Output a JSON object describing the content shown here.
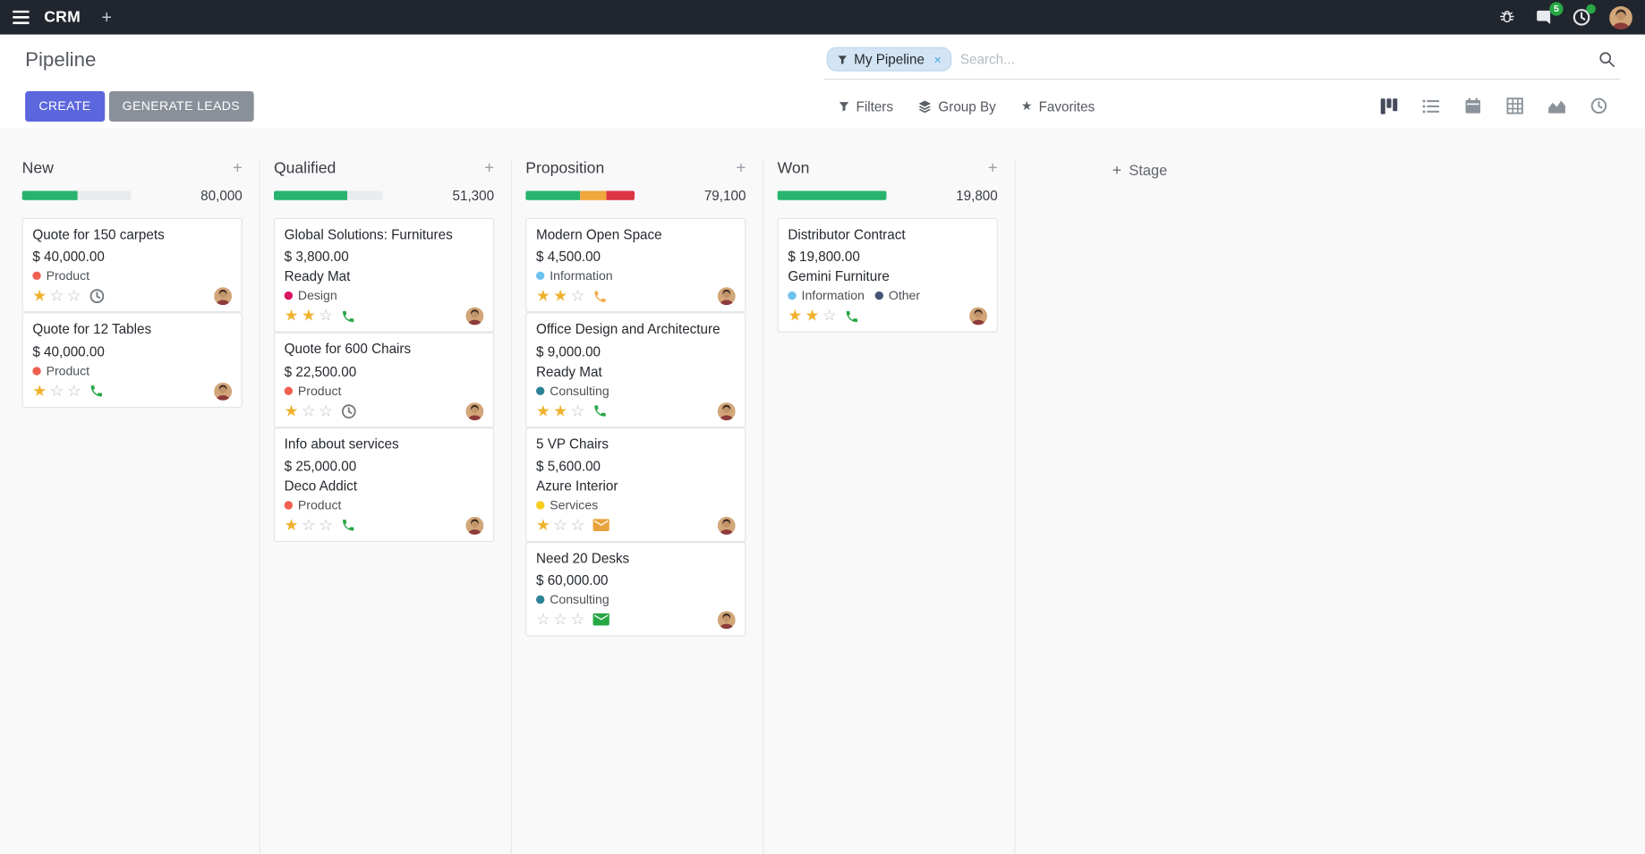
{
  "colors": {
    "topbar-bg": "#21262e",
    "primary": "#5c66dd",
    "secondary-btn": "#8a9099",
    "badge-green": "#28a745",
    "board-bg": "#f9f9fa",
    "facet-bg": "#d3e5f5",
    "facet-border": "#bcd6ec",
    "gold": "#f0b12c",
    "star-muted": "#b9bfc5"
  },
  "topbar": {
    "app_name": "CRM",
    "icons": [
      "apps-menu-icon",
      "plus-icon",
      "bug-icon",
      "messages-icon",
      "activities-icon",
      "user-avatar"
    ],
    "messages_badge": "5"
  },
  "control_panel": {
    "title": "Pipeline",
    "create_label": "CREATE",
    "generate_leads_label": "GENERATE LEADS",
    "filters_label": "Filters",
    "group_by_label": "Group By",
    "favorites_label": "Favorites",
    "search": {
      "facet_label": "My Pipeline",
      "placeholder": "Search...",
      "remove_facet": "×"
    },
    "view_switcher": [
      "kanban",
      "list",
      "calendar",
      "pivot",
      "graph",
      "activity"
    ],
    "active_view": "kanban"
  },
  "board": {
    "add_stage_label": "Stage",
    "columns": [
      {
        "title": "New",
        "count": "80,000",
        "progress": [
          {
            "color": "#28b46e",
            "pct": 51
          },
          {
            "color": "#e9ecef",
            "pct": 49
          }
        ],
        "cards": [
          {
            "title": "Quote for 150 carpets",
            "amount": "$ 40,000.00",
            "tags": [
              {
                "label": "Product",
                "color": "#f06050"
              }
            ],
            "stars": 1,
            "activity": {
              "icon": "clock-icon",
              "color": "#74797e"
            }
          },
          {
            "title": "Quote for 12 Tables",
            "amount": "$ 40,000.00",
            "tags": [
              {
                "label": "Product",
                "color": "#f06050"
              }
            ],
            "stars": 1,
            "activity": {
              "icon": "phone-icon",
              "color": "#28a745"
            }
          }
        ]
      },
      {
        "title": "Qualified",
        "count": "51,300",
        "progress": [
          {
            "color": "#28b46e",
            "pct": 67
          },
          {
            "color": "#e9ecef",
            "pct": 33
          }
        ],
        "cards": [
          {
            "title": "Global Solutions: Furnitures",
            "amount": "$ 3,800.00",
            "partner": "Ready Mat",
            "tags": [
              {
                "label": "Design",
                "color": "#d6145f"
              }
            ],
            "stars": 2,
            "activity": {
              "icon": "phone-icon",
              "color": "#28a745"
            }
          },
          {
            "title": "Quote for 600 Chairs",
            "amount": "$ 22,500.00",
            "tags": [
              {
                "label": "Product",
                "color": "#f06050"
              }
            ],
            "stars": 1,
            "activity": {
              "icon": "clock-icon",
              "color": "#74797e"
            }
          },
          {
            "title": "Info about services",
            "amount": "$ 25,000.00",
            "partner": "Deco Addict",
            "tags": [
              {
                "label": "Product",
                "color": "#f06050"
              }
            ],
            "stars": 1,
            "activity": {
              "icon": "phone-icon",
              "color": "#28a745"
            }
          }
        ]
      },
      {
        "title": "Proposition",
        "count": "79,100",
        "progress": [
          {
            "color": "#28b46e",
            "pct": 50
          },
          {
            "color": "#f0a63b",
            "pct": 24
          },
          {
            "color": "#dc3545",
            "pct": 26
          }
        ],
        "cards": [
          {
            "title": "Modern Open Space",
            "amount": "$ 4,500.00",
            "tags": [
              {
                "label": "Information",
                "color": "#6cc1ed"
              }
            ],
            "stars": 2,
            "activity": {
              "icon": "phone-icon",
              "color": "#f0ad4e"
            }
          },
          {
            "title": "Office Design and Architecture",
            "amount": "$ 9,000.00",
            "partner": "Ready Mat",
            "tags": [
              {
                "label": "Consulting",
                "color": "#2c8397"
              }
            ],
            "stars": 2,
            "activity": {
              "icon": "phone-icon",
              "color": "#28a745"
            }
          },
          {
            "title": "5 VP Chairs",
            "amount": "$ 5,600.00",
            "partner": "Azure Interior",
            "tags": [
              {
                "label": "Services",
                "color": "#f7cd1f"
              }
            ],
            "stars": 1,
            "activity": {
              "icon": "envelope-icon",
              "color": "#e8a33d"
            }
          },
          {
            "title": "Need 20 Desks",
            "amount": "$ 60,000.00",
            "tags": [
              {
                "label": "Consulting",
                "color": "#2c8397"
              }
            ],
            "stars": 0,
            "activity": {
              "icon": "envelope-icon",
              "color": "#28a745"
            }
          }
        ]
      },
      {
        "title": "Won",
        "count": "19,800",
        "progress": [
          {
            "color": "#28b46e",
            "pct": 100
          }
        ],
        "cards": [
          {
            "title": "Distributor Contract",
            "amount": "$ 19,800.00",
            "partner": "Gemini Furniture",
            "tags": [
              {
                "label": "Information",
                "color": "#6cc1ed"
              },
              {
                "label": "Other",
                "color": "#475577"
              }
            ],
            "stars": 2,
            "activity": {
              "icon": "phone-icon",
              "color": "#28a745"
            }
          }
        ]
      }
    ]
  }
}
